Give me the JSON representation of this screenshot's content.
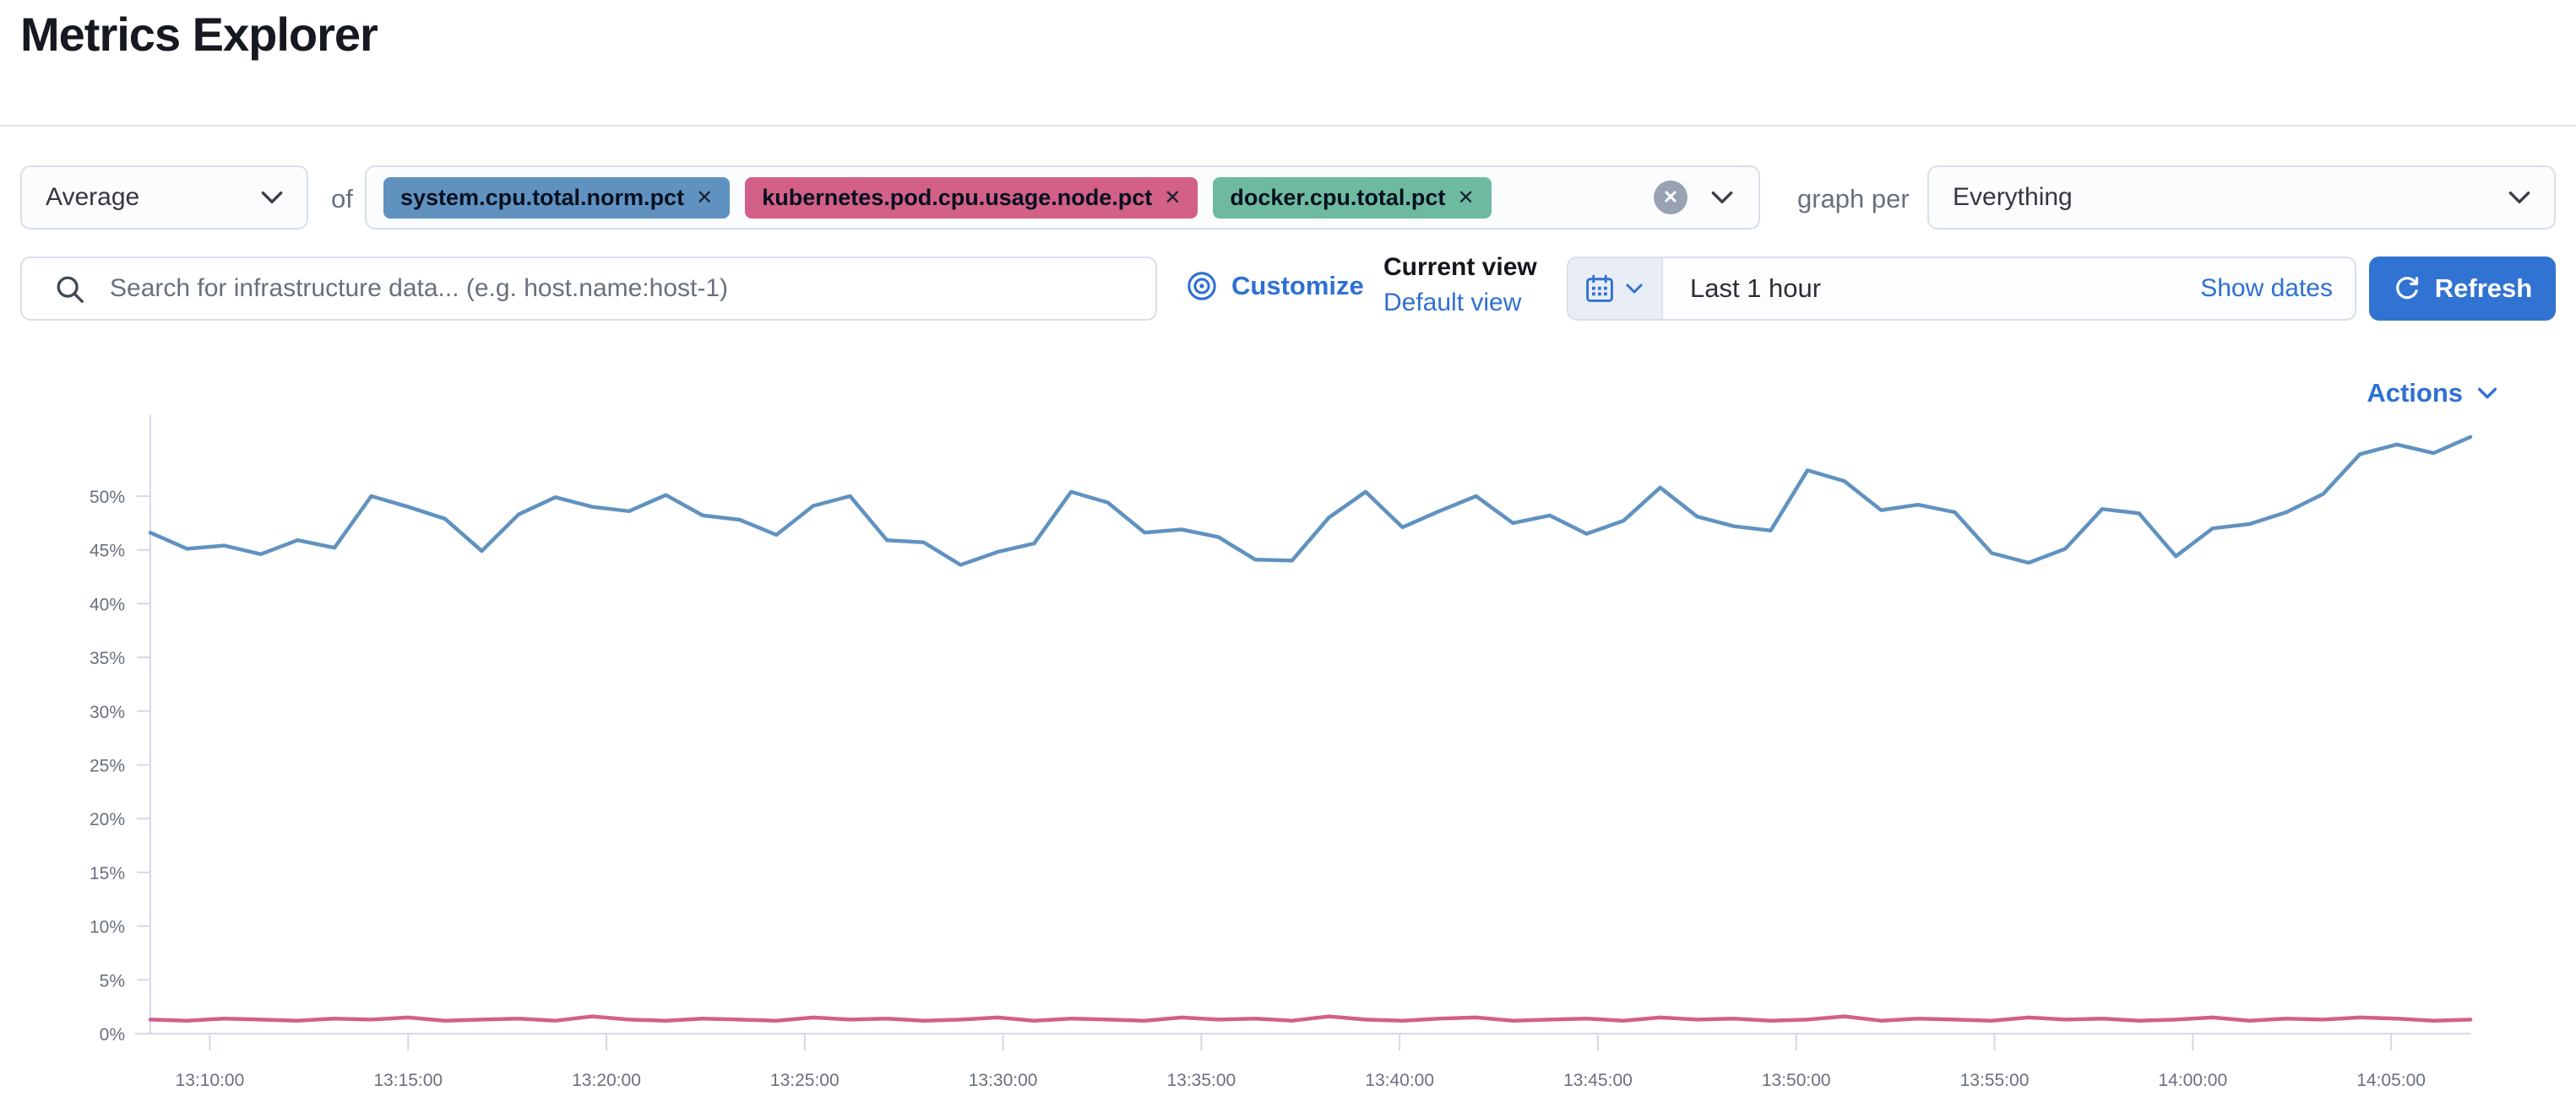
{
  "page": {
    "title": "Metrics Explorer"
  },
  "controls": {
    "aggregation": {
      "value": "Average"
    },
    "of_label": "of",
    "metrics": [
      {
        "label": "system.cpu.total.norm.pct",
        "color": "#6092C0"
      },
      {
        "label": "kubernetes.pod.cpu.usage.node.pct",
        "color": "#D36086"
      },
      {
        "label": "docker.cpu.total.pct",
        "color": "#6EBAA0"
      }
    ],
    "remove_icon": "✕",
    "clear_icon": "✕",
    "graph_per_label": "graph per",
    "group_by": {
      "value": "Everything"
    }
  },
  "toolbar": {
    "search_placeholder": "Search for infrastructure data... (e.g. host.name:host-1)",
    "customize_label": "Customize",
    "current_view_label": "Current view",
    "default_view_label": "Default view",
    "time_range_value": "Last 1 hour",
    "show_dates_label": "Show dates",
    "refresh_label": "Refresh"
  },
  "chart_section": {
    "actions_label": "Actions"
  },
  "colors": {
    "primary_link": "#2F70D2",
    "refresh_button_bg": "#3173D2",
    "control_border": "#D9DFE9",
    "axis_line": "#D3DAE6",
    "axis_text": "#69707D",
    "series_blue": "#6092C0",
    "series_pink": "#D36086",
    "clear_circle_bg": "#98A2B3"
  },
  "chart_data": {
    "type": "line",
    "title": "",
    "xlabel": "",
    "ylabel": "",
    "legend": "none",
    "grid": "ticks-only",
    "x_domain": [
      "13:08:30",
      "14:07:00"
    ],
    "values_evenly_spaced_over_domain": true,
    "ylim": [
      0,
      57.5
    ],
    "y_tick_labels": [
      "0%",
      "5%",
      "10%",
      "15%",
      "20%",
      "25%",
      "30%",
      "35%",
      "40%",
      "45%",
      "50%"
    ],
    "x_tick_labels": [
      "13:10:00",
      "13:15:00",
      "13:20:00",
      "13:25:00",
      "13:30:00",
      "13:35:00",
      "13:40:00",
      "13:45:00",
      "13:50:00",
      "13:55:00",
      "14:00:00",
      "14:05:00"
    ],
    "series": [
      {
        "name": "system.cpu.total.norm.pct",
        "color": "#6092C0",
        "unit": "%",
        "values": [
          46.6,
          45.1,
          45.4,
          44.6,
          45.9,
          45.2,
          50.0,
          49.0,
          47.9,
          44.9,
          48.3,
          49.9,
          49.0,
          48.6,
          50.1,
          48.2,
          47.8,
          46.4,
          49.1,
          50.0,
          45.9,
          45.7,
          43.6,
          44.8,
          45.6,
          50.4,
          49.4,
          46.6,
          46.9,
          46.2,
          44.1,
          44.0,
          48.0,
          50.4,
          47.1,
          48.6,
          50.0,
          47.5,
          48.2,
          46.5,
          47.7,
          50.8,
          48.1,
          47.2,
          46.8,
          52.4,
          51.4,
          48.7,
          49.2,
          48.5,
          44.7,
          43.8,
          45.1,
          48.8,
          48.4,
          44.4,
          47.0,
          47.4,
          48.5,
          50.2,
          53.9,
          54.8,
          54.0,
          55.5
        ]
      },
      {
        "name": "kubernetes.pod.cpu.usage.node.pct",
        "color": "#D36086",
        "unit": "%",
        "values": [
          1.3,
          1.2,
          1.4,
          1.3,
          1.2,
          1.4,
          1.3,
          1.5,
          1.2,
          1.3,
          1.4,
          1.2,
          1.6,
          1.3,
          1.2,
          1.4,
          1.3,
          1.2,
          1.5,
          1.3,
          1.4,
          1.2,
          1.3,
          1.5,
          1.2,
          1.4,
          1.3,
          1.2,
          1.5,
          1.3,
          1.4,
          1.2,
          1.6,
          1.3,
          1.2,
          1.4,
          1.5,
          1.2,
          1.3,
          1.4,
          1.2,
          1.5,
          1.3,
          1.4,
          1.2,
          1.3,
          1.6,
          1.2,
          1.4,
          1.3,
          1.2,
          1.5,
          1.3,
          1.4,
          1.2,
          1.3,
          1.5,
          1.2,
          1.4,
          1.3,
          1.5,
          1.4,
          1.2,
          1.3
        ]
      }
    ]
  }
}
